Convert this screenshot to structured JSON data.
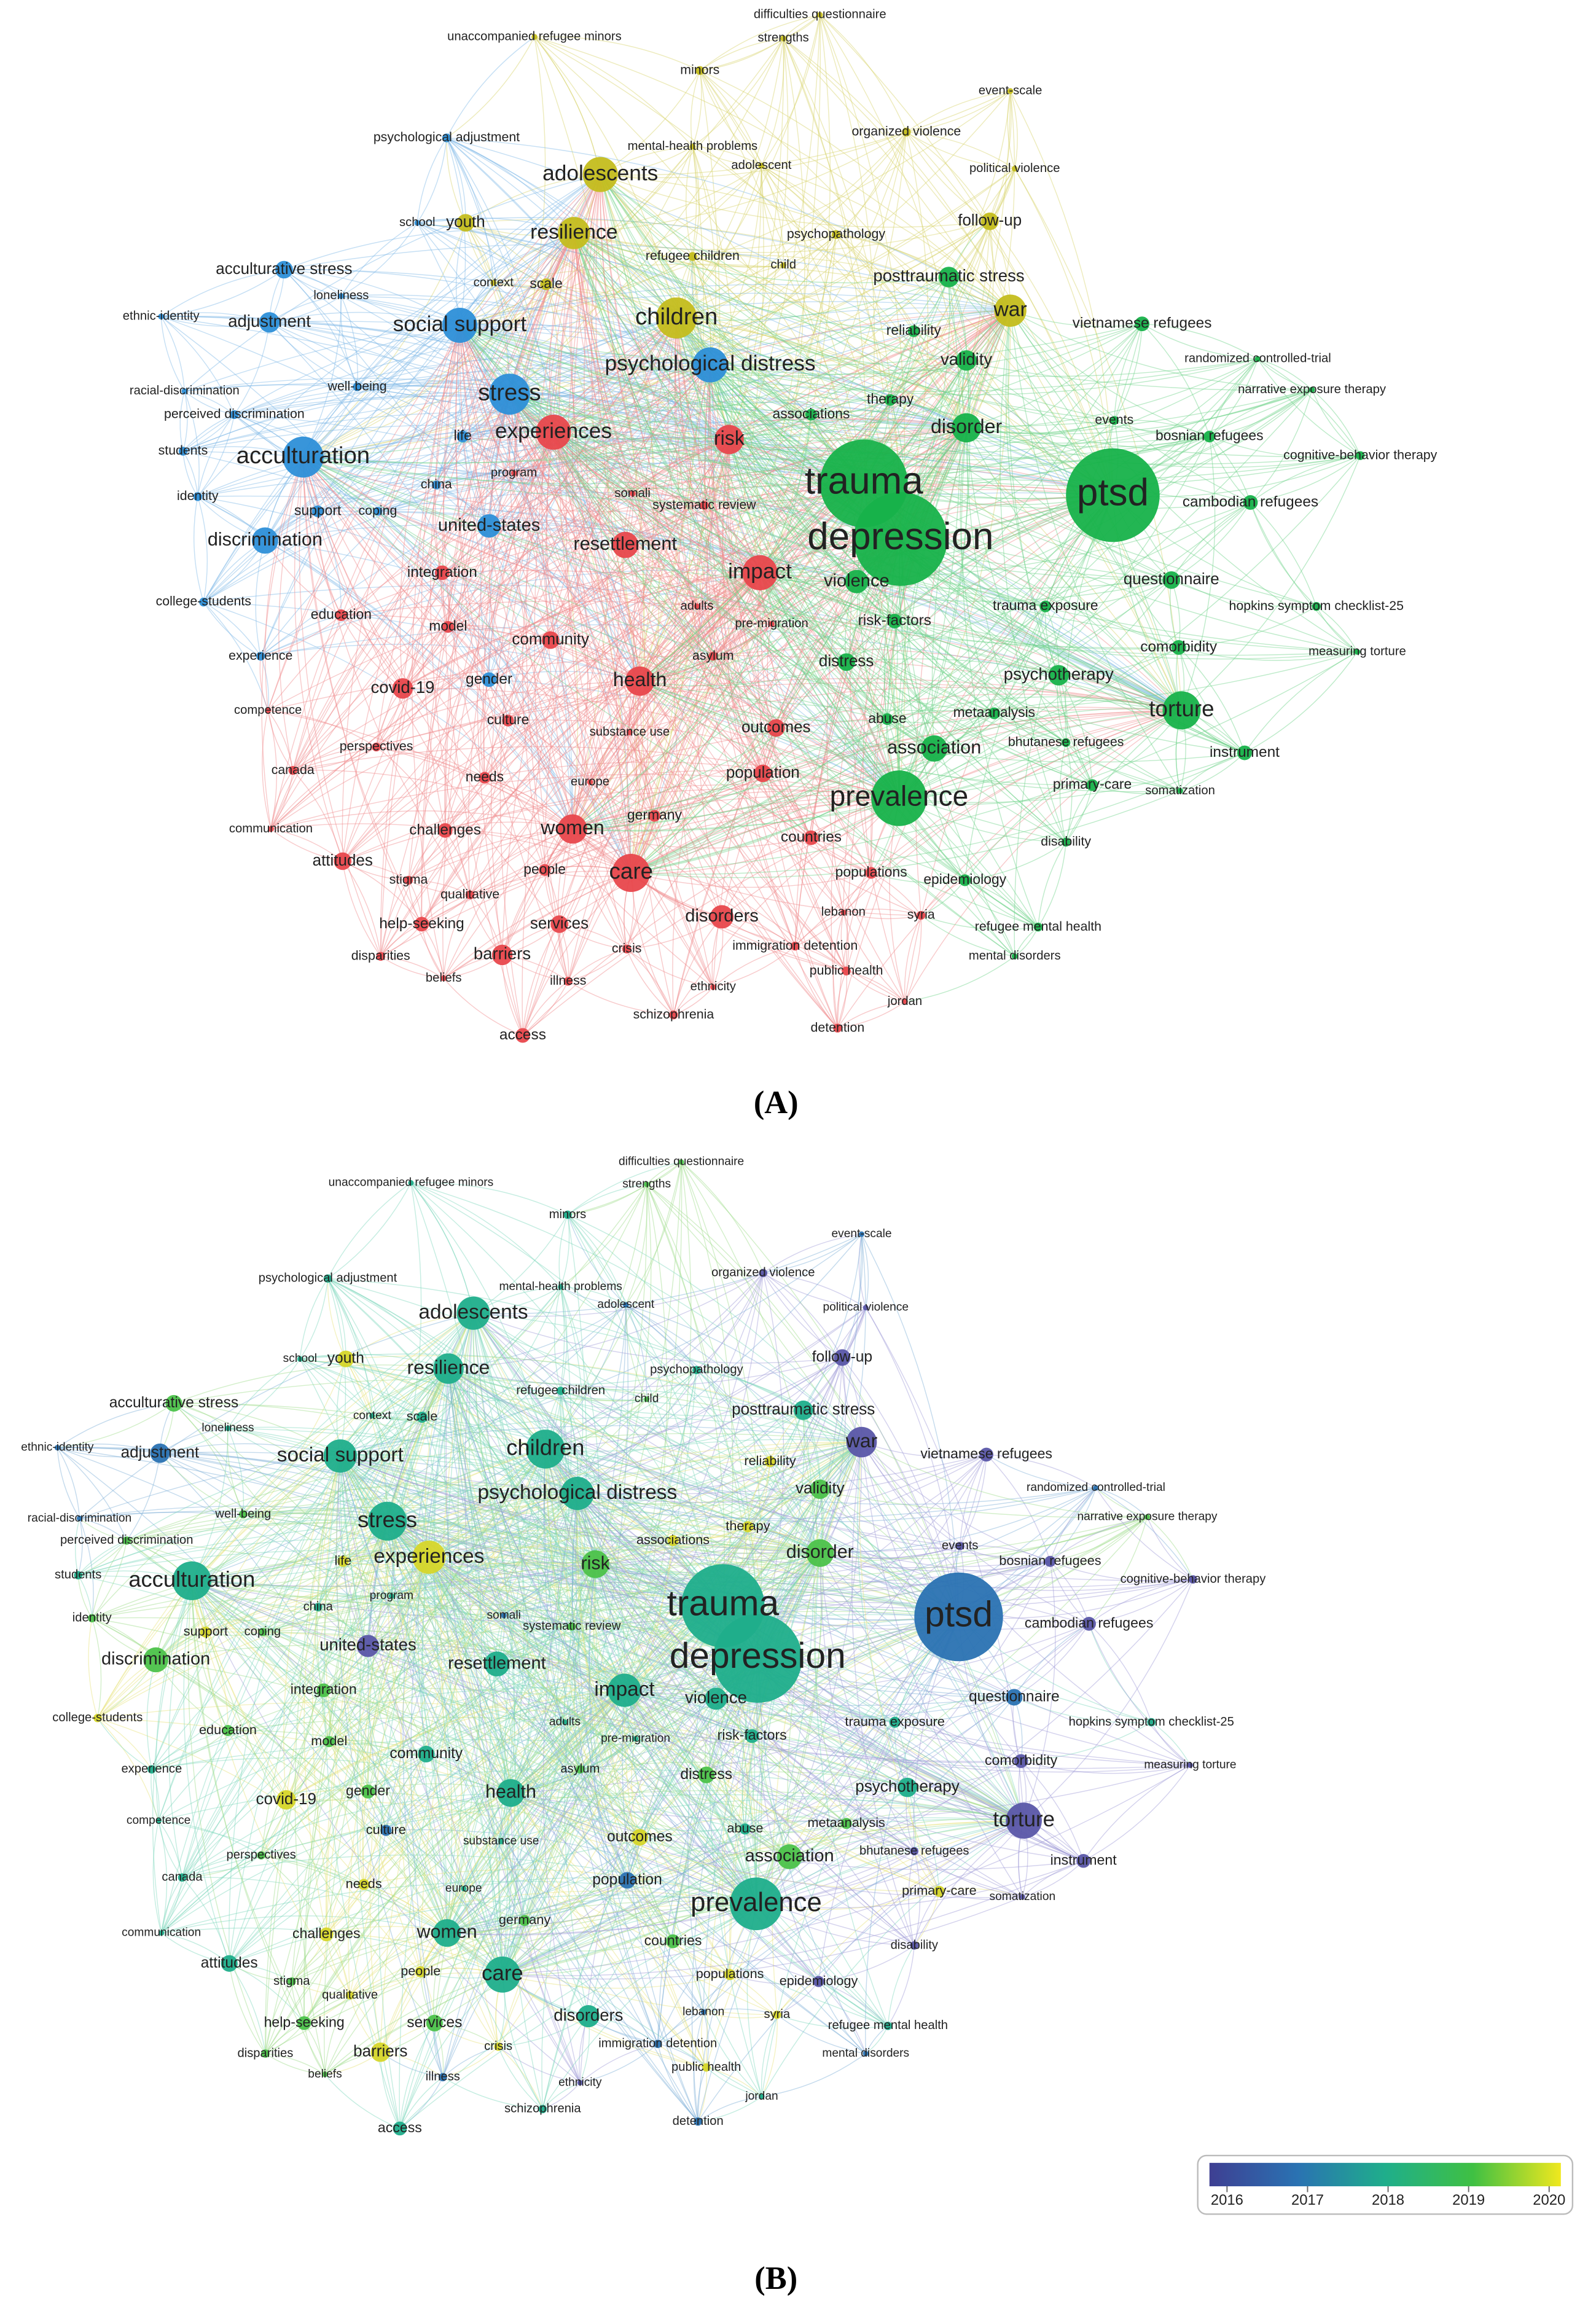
{
  "panels": [
    {
      "caption": "(A)"
    },
    {
      "caption": "(B)"
    }
  ],
  "nodes": [
    "unaccompanied refugee minors",
    "difficulties questionnaire",
    "strengths",
    "minors",
    "mental-health problems",
    "adolescent",
    "adolescents",
    "resilience",
    "youth",
    "school",
    "children",
    "psychopathology",
    "refugee children",
    "child",
    "context",
    "scale",
    "organized violence",
    "political violence",
    "event-scale",
    "follow-up",
    "war",
    "psychological adjustment",
    "acculturative stress",
    "loneliness",
    "ethnic-identity",
    "adjustment",
    "social support",
    "psychological distress",
    "racial-discrimination",
    "well-being",
    "stress",
    "perceived discrimination",
    "students",
    "acculturation",
    "life",
    "identity",
    "china",
    "support",
    "coping",
    "united-states",
    "discrimination",
    "college-students",
    "experience",
    "gender",
    "experiences",
    "risk",
    "program",
    "somali",
    "systematic review",
    "resettlement",
    "integration",
    "impact",
    "model",
    "community",
    "education",
    "adults",
    "pre-migration",
    "asylum",
    "health",
    "covid-19",
    "culture",
    "substance use",
    "outcomes",
    "competence",
    "perspectives",
    "canada",
    "needs",
    "europe",
    "population",
    "germany",
    "women",
    "communication",
    "challenges",
    "countries",
    "care",
    "attitudes",
    "people",
    "stigma",
    "qualitative",
    "populations",
    "help-seeking",
    "services",
    "disorders",
    "lebanon",
    "syria",
    "disparities",
    "barriers",
    "crisis",
    "immigration detention",
    "beliefs",
    "illness",
    "public health",
    "ethnicity",
    "schizophrenia",
    "jordan",
    "access",
    "detention",
    "posttraumatic stress",
    "reliability",
    "validity",
    "vietnamese refugees",
    "randomized controlled-trial",
    "narrative exposure therapy",
    "therapy",
    "associations",
    "disorder",
    "events",
    "bosnian refugees",
    "cognitive-behavior therapy",
    "trauma",
    "ptsd",
    "depression",
    "cambodian refugees",
    "violence",
    "questionnaire",
    "trauma exposure",
    "hopkins symptom checklist-25",
    "risk-factors",
    "comorbidity",
    "measuring torture",
    "distress",
    "psychotherapy",
    "torture",
    "abuse",
    "metaanalysis",
    "bhutanese refugees",
    "association",
    "instrument",
    "prevalence",
    "primary-care",
    "somatization",
    "epidemiology",
    "refugee mental health",
    "mental disorders",
    "disability"
  ],
  "legend": {
    "ticks": [
      2016,
      2017,
      2018,
      2019,
      2020
    ]
  }
}
